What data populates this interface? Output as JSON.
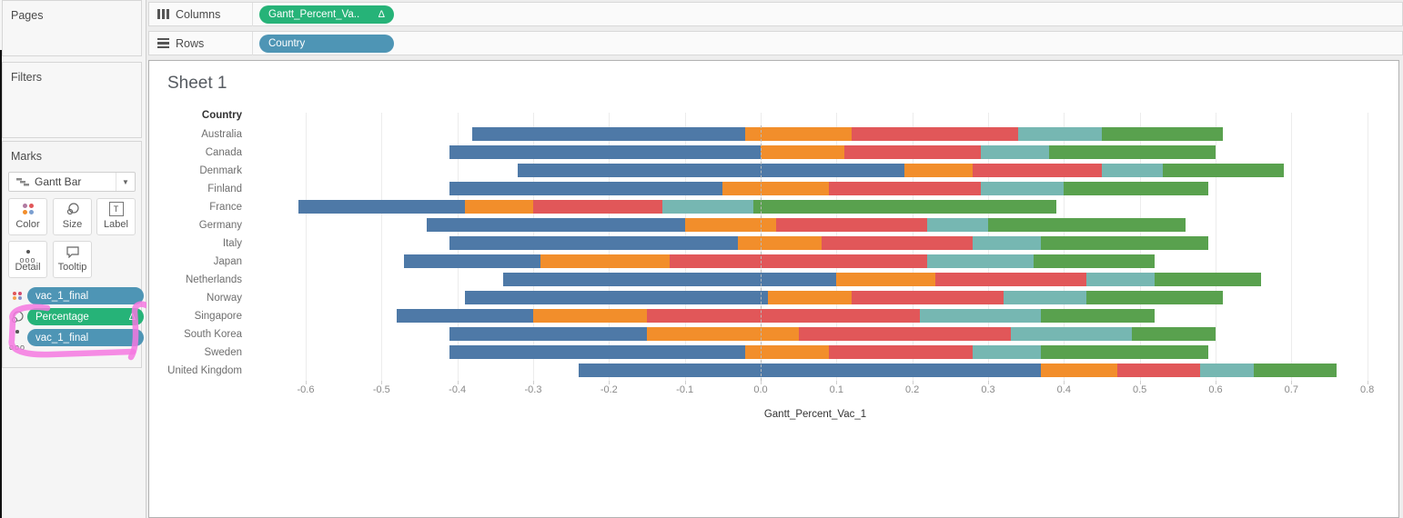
{
  "sidebar": {
    "pages_label": "Pages",
    "filters_label": "Filters",
    "marks_label": "Marks",
    "mark_type": "Gantt Bar",
    "buttons": {
      "color": "Color",
      "size": "Size",
      "label": "Label",
      "detail": "Detail",
      "tooltip": "Tooltip"
    },
    "pills": [
      {
        "label": "vac_1_final",
        "type": "blue",
        "icon": "color-legend"
      },
      {
        "label": "Percentage",
        "delta": "Δ",
        "type": "green",
        "icon": "size"
      },
      {
        "label": "vac_1_final",
        "type": "blue",
        "icon": "detail"
      }
    ]
  },
  "shelves": {
    "columns": {
      "label": "Columns",
      "pill": {
        "label": "Gantt_Percent_Va..",
        "delta": "Δ",
        "type": "green"
      }
    },
    "rows": {
      "label": "Rows",
      "pill": {
        "label": "Country",
        "type": "blue"
      }
    }
  },
  "sheet": {
    "title": "Sheet 1"
  },
  "colors": {
    "pill_green": "#26b378",
    "pill_blue": "#4e95b5",
    "annotation_pink": "#f478e0",
    "bar_blue": "#4e79a7",
    "bar_orange": "#f28e2b",
    "bar_red": "#e15759",
    "bar_teal": "#76b7b2",
    "bar_green": "#59a14e"
  },
  "chart_data": {
    "type": "bar",
    "subtype": "stacked-gantt-horizontal",
    "title": "Sheet 1",
    "row_header": "Country",
    "xlabel": "Gantt_Percent_Vac_1",
    "xlim": [
      -0.678,
      0.822
    ],
    "x_ticks": [
      -0.6,
      -0.5,
      -0.4,
      -0.3,
      -0.2,
      -0.1,
      0.0,
      0.1,
      0.2,
      0.3,
      0.4,
      0.5,
      0.6,
      0.7,
      0.8
    ],
    "x_tick_labels": [
      "-0.6",
      "-0.5",
      "-0.4",
      "-0.3",
      "-0.2",
      "-0.1",
      "0.0",
      "0.1",
      "0.2",
      "0.3",
      "0.4",
      "0.5",
      "0.6",
      "0.7",
      "0.8"
    ],
    "grid": true,
    "zero_line": 0.0,
    "segment_colors": [
      "#4e79a7",
      "#f28e2b",
      "#e15759",
      "#76b7b2",
      "#59a14e"
    ],
    "rows": [
      {
        "country": "Australia",
        "breaks": [
          -0.38,
          -0.02,
          0.12,
          0.34,
          0.45,
          0.61
        ]
      },
      {
        "country": "Canada",
        "breaks": [
          -0.41,
          0.0,
          0.11,
          0.29,
          0.38,
          0.6
        ]
      },
      {
        "country": "Denmark",
        "breaks": [
          -0.32,
          0.19,
          0.28,
          0.45,
          0.53,
          0.69
        ]
      },
      {
        "country": "Finland",
        "breaks": [
          -0.41,
          -0.05,
          0.09,
          0.29,
          0.4,
          0.59
        ]
      },
      {
        "country": "France",
        "breaks": [
          -0.61,
          -0.39,
          -0.3,
          -0.13,
          -0.01,
          0.39
        ]
      },
      {
        "country": "Germany",
        "breaks": [
          -0.44,
          -0.1,
          0.02,
          0.22,
          0.3,
          0.56
        ]
      },
      {
        "country": "Italy",
        "breaks": [
          -0.41,
          -0.03,
          0.08,
          0.28,
          0.37,
          0.59
        ]
      },
      {
        "country": "Japan",
        "breaks": [
          -0.47,
          -0.29,
          -0.12,
          0.22,
          0.36,
          0.52
        ]
      },
      {
        "country": "Netherlands",
        "breaks": [
          -0.34,
          0.1,
          0.23,
          0.43,
          0.52,
          0.66
        ]
      },
      {
        "country": "Norway",
        "breaks": [
          -0.39,
          0.01,
          0.12,
          0.32,
          0.43,
          0.61
        ]
      },
      {
        "country": "Singapore",
        "breaks": [
          -0.48,
          -0.3,
          -0.15,
          0.21,
          0.37,
          0.52
        ]
      },
      {
        "country": "South Korea",
        "breaks": [
          -0.41,
          -0.15,
          0.05,
          0.33,
          0.49,
          0.6
        ]
      },
      {
        "country": "Sweden",
        "breaks": [
          -0.41,
          -0.02,
          0.09,
          0.28,
          0.37,
          0.59
        ]
      },
      {
        "country": "United Kingdom",
        "breaks": [
          -0.24,
          0.37,
          0.47,
          0.58,
          0.65,
          0.76
        ]
      }
    ]
  }
}
